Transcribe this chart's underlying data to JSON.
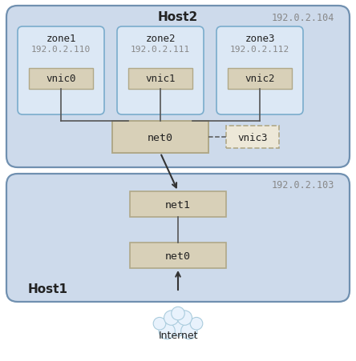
{
  "host2_label": "Host2",
  "host2_ip": "192.0.2.104",
  "host1_label": "Host1",
  "host1_ip": "192.0.2.103",
  "zone1_label": "zone1",
  "zone1_ip": "192.0.2.110",
  "zone2_label": "zone2",
  "zone2_ip": "192.0.2.111",
  "zone3_label": "zone3",
  "zone3_ip": "192.0.2.112",
  "vnic0_label": "vnic0",
  "vnic1_label": "vnic1",
  "vnic2_label": "vnic2",
  "vnic3_label": "vnic3",
  "net0h2_label": "net0",
  "net1_label": "net1",
  "net0h1_label": "net0",
  "internet_label": "Internet",
  "host_bg": "#cddaeb",
  "host_edge": "#7090b0",
  "zone_bg": "#dce8f5",
  "zone_edge": "#7aaccc",
  "net_box_face": "#d8d0b8",
  "net_box_edge": "#b0a888",
  "vnic3_face": "#ede8d8",
  "vnic3_edge": "#b0a888",
  "line_color": "#555555",
  "text_dark": "#222222",
  "text_ip": "#888888",
  "cloud_face": "#e8f2fc",
  "cloud_edge": "#aaccdd"
}
